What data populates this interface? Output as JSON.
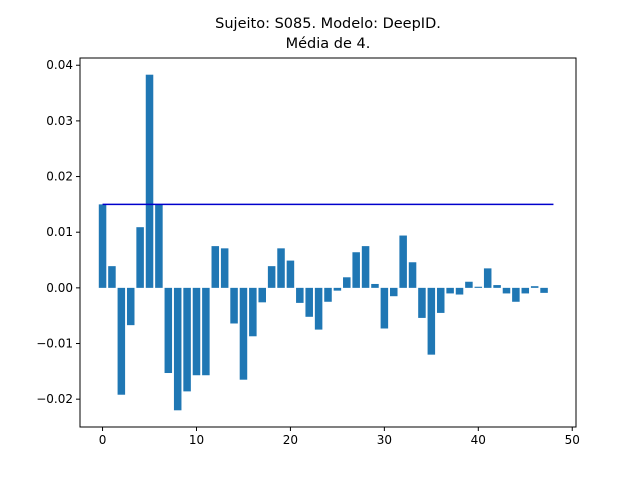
{
  "chart_data": {
    "type": "bar",
    "title_line1": "Sujeito: S085. Modelo: DeepID.",
    "title_line2": "Média de 4.",
    "xlabel": "",
    "ylabel": "",
    "x": [
      0,
      1,
      2,
      3,
      4,
      5,
      6,
      7,
      8,
      9,
      10,
      11,
      12,
      13,
      14,
      15,
      16,
      17,
      18,
      19,
      20,
      21,
      22,
      23,
      24,
      25,
      26,
      27,
      28,
      29,
      30,
      31,
      32,
      33,
      34,
      35,
      36,
      37,
      38,
      39,
      40,
      41,
      42,
      43,
      44,
      45,
      46,
      47
    ],
    "values": [
      0.015,
      0.0039,
      -0.0192,
      -0.0067,
      0.0109,
      0.0383,
      0.015,
      -0.0153,
      -0.022,
      -0.0186,
      -0.0157,
      -0.0157,
      0.0075,
      0.0071,
      -0.0064,
      -0.0165,
      -0.0087,
      -0.0026,
      0.0039,
      0.0071,
      0.0049,
      -0.0027,
      -0.0052,
      -0.0075,
      -0.0025,
      -0.0005,
      0.0019,
      0.0064,
      0.0075,
      0.0007,
      -0.0073,
      -0.0015,
      0.0094,
      0.0046,
      -0.0054,
      -0.012,
      -0.0045,
      -0.001,
      -0.0012,
      0.0011,
      0.0002,
      0.0035,
      0.0005,
      -0.001,
      -0.0025,
      -0.001,
      0.0003,
      -0.0009
    ],
    "hline": {
      "y": 0.015,
      "x_start": 0,
      "x_end": 48,
      "color": "#0000cc"
    },
    "bar_color": "#1f77b4",
    "xlim": [
      -2.4,
      50.4
    ],
    "ylim": [
      -0.025,
      0.0413
    ],
    "xticks": [
      0,
      10,
      20,
      30,
      40,
      50
    ],
    "xtick_labels": [
      "0",
      "10",
      "20",
      "30",
      "40",
      "50"
    ],
    "yticks": [
      -0.02,
      -0.01,
      0.0,
      0.01,
      0.02,
      0.03,
      0.04
    ],
    "ytick_labels": [
      "−0.02",
      "−0.01",
      "0.00",
      "0.01",
      "0.02",
      "0.03",
      "0.04"
    ],
    "grid": false,
    "legend": "none"
  }
}
